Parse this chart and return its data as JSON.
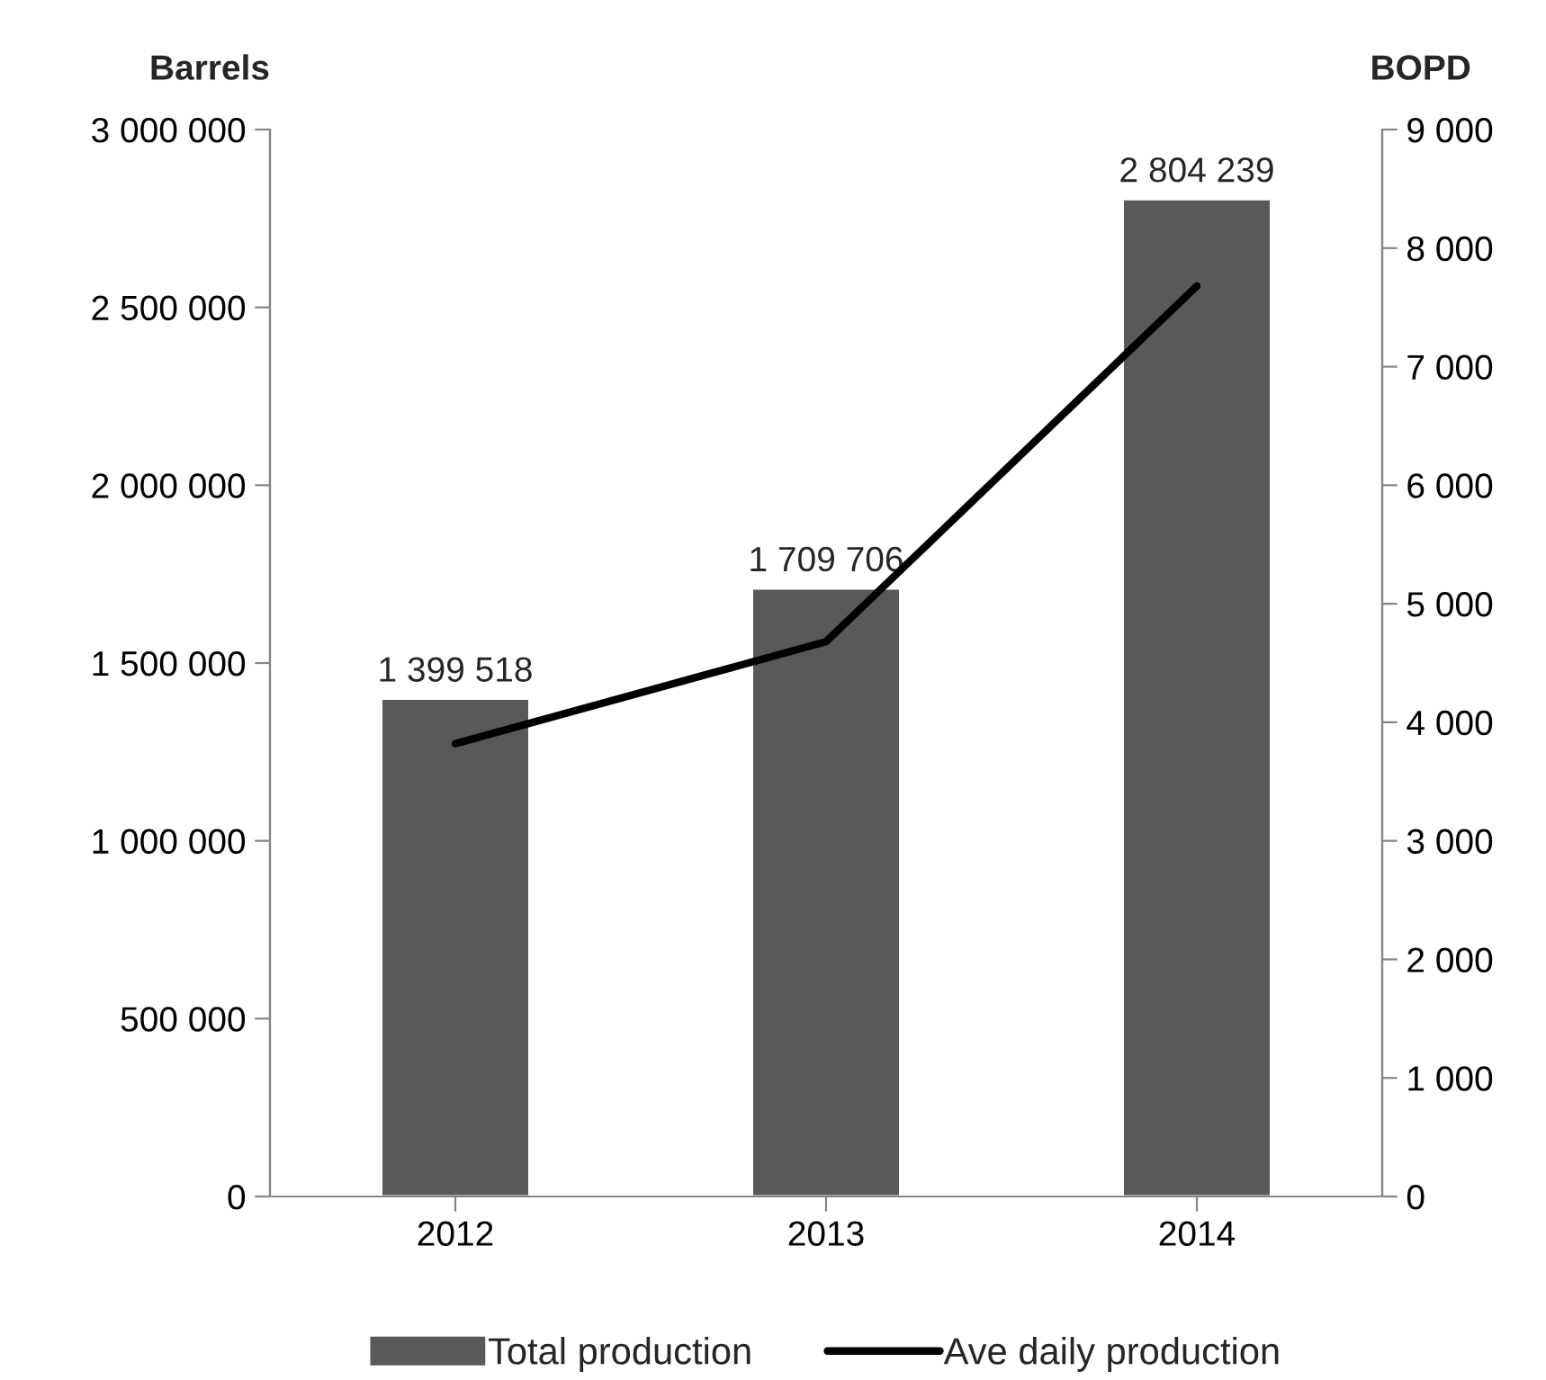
{
  "chart_data": {
    "type": "bar",
    "categories": [
      "2012",
      "2013",
      "2014"
    ],
    "ylabel": "Barrels",
    "y2label": "BOPD",
    "series": [
      {
        "name": "Total production",
        "color": "#595959",
        "values": [
          1399518,
          1709706,
          2804239
        ],
        "value_labels": [
          "1 399 518",
          "1 709 706",
          "2 804 239"
        ]
      },
      {
        "name": "Ave daily production",
        "type": "line",
        "axis": "y2",
        "color": "#000000",
        "values": [
          3820,
          4680,
          7680
        ],
        "marker": "none",
        "line_style": "solid"
      }
    ],
    "ylim": [
      0,
      3000000
    ],
    "yticks": [
      {
        "value": 0,
        "label": "0"
      },
      {
        "value": 500000,
        "label": "500 000"
      },
      {
        "value": 1000000,
        "label": "1 000 000"
      },
      {
        "value": 1500000,
        "label": "1 500 000"
      },
      {
        "value": 2000000,
        "label": "2 000 000"
      },
      {
        "value": 2500000,
        "label": "2 500 000"
      },
      {
        "value": 3000000,
        "label": "3 000 000"
      }
    ],
    "y2lim": [
      0,
      9000
    ],
    "y2ticks": [
      {
        "value": 0,
        "label": "0"
      },
      {
        "value": 1000,
        "label": "1 000"
      },
      {
        "value": 2000,
        "label": "2 000"
      },
      {
        "value": 3000,
        "label": "3 000"
      },
      {
        "value": 4000,
        "label": "4 000"
      },
      {
        "value": 5000,
        "label": "5 000"
      },
      {
        "value": 6000,
        "label": "6 000"
      },
      {
        "value": 7000,
        "label": "7 000"
      },
      {
        "value": 8000,
        "label": "8 000"
      },
      {
        "value": 9000,
        "label": "9 000"
      }
    ],
    "grid": false,
    "legend": "bottom"
  }
}
